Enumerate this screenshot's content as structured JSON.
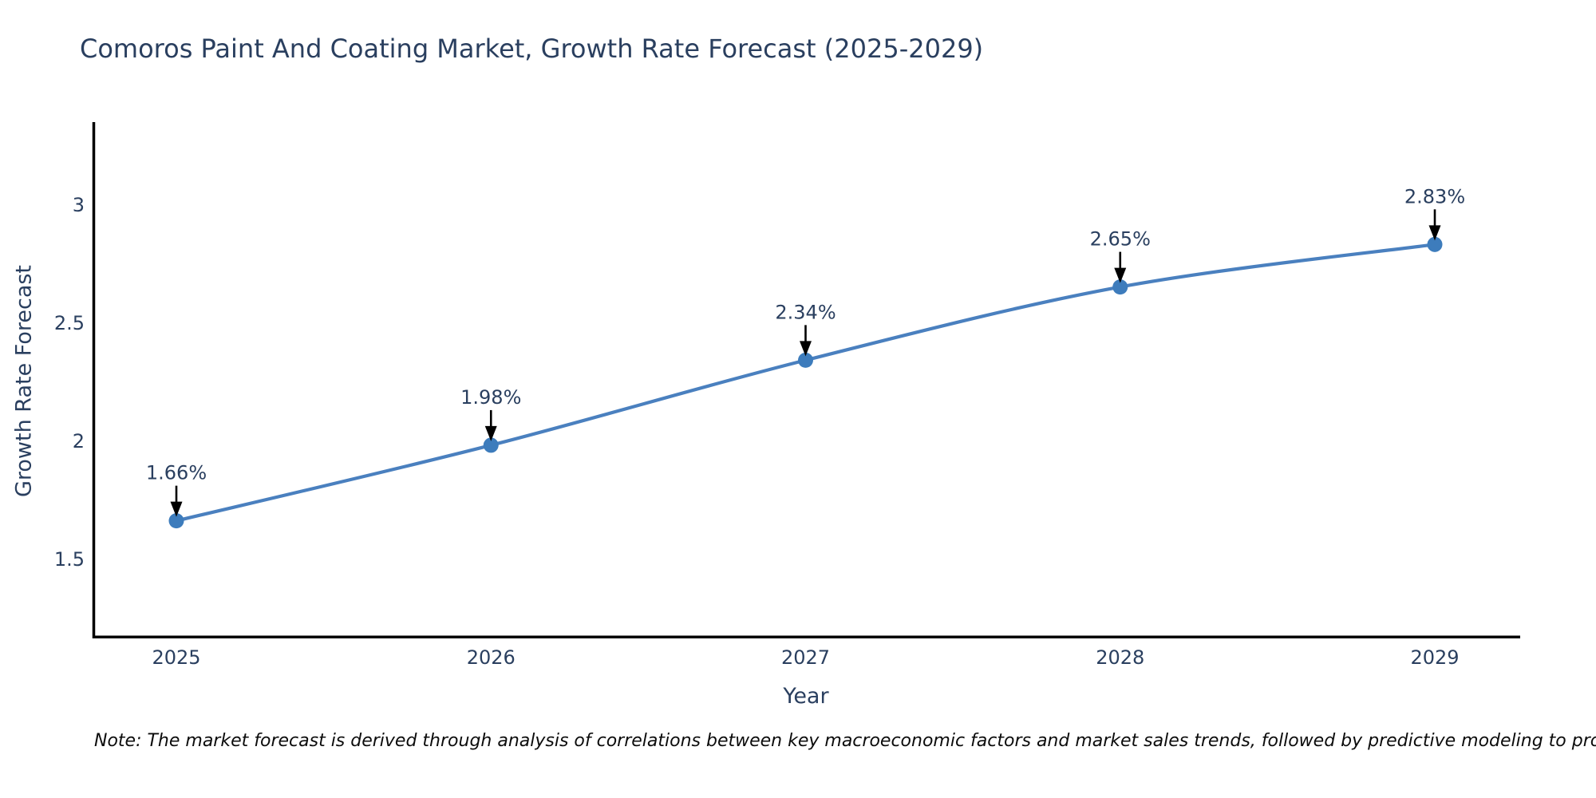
{
  "title": "Comoros Paint And Coating Market, Growth Rate Forecast (2025-2029)",
  "note": "Note: The market forecast is derived through analysis of correlations between key macroeconomic factors and market sales trends, followed by predictive modeling to project future sales",
  "chart_data": {
    "type": "line",
    "title": "Comoros Paint And Coating Market, Growth Rate Forecast (2025-2029)",
    "xlabel": "Year",
    "ylabel": "Growth Rate Forecast",
    "x": [
      2025,
      2026,
      2027,
      2028,
      2029
    ],
    "xtick_labels": [
      "2025",
      "2026",
      "2027",
      "2028",
      "2029"
    ],
    "values": [
      1.66,
      1.98,
      2.34,
      2.65,
      2.83
    ],
    "point_labels": [
      "1.66%",
      "1.98%",
      "2.34%",
      "2.65%",
      "2.83%"
    ],
    "yticks": [
      1.5,
      2,
      2.5,
      3
    ],
    "ytick_labels": [
      "1.5",
      "2",
      "2.5",
      "3"
    ],
    "ylim": [
      1.16,
      3.35
    ],
    "xlim": [
      2024.73,
      2029.27
    ],
    "grid": false,
    "legend": null,
    "line_shape": "spline",
    "annotation_arrows": true,
    "colors": {
      "line": "#4a80bf",
      "marker": "#3d7cbc",
      "axis_line": "#000000",
      "text": "#2a3f5f",
      "arrow": "#000000",
      "background": "#ffffff"
    }
  }
}
